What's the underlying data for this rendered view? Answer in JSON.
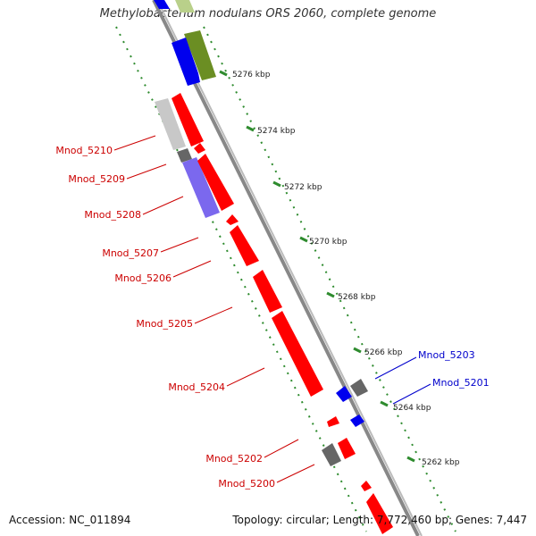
{
  "title": "Methylobacterium nodulans ORS 2060, complete genome",
  "footer": {
    "accession": "Accession: NC_011894",
    "summary": "Topology: circular; Length: 7,772,460 bp; Genes: 7,447"
  },
  "colors": {
    "forward_gene": "#ff0000",
    "reverse_gene": "#0000ee",
    "pseudo_gray": "#808080",
    "olive": "#6b8e23",
    "lavender": "#7b68ee",
    "light_gray": "#c8c8c8",
    "ruler_ticks": "#2e8b2e",
    "backbone": "#888888",
    "label_red": "#cc0000",
    "label_blue": "#0000cc"
  },
  "ruler": {
    "unit": "kbp",
    "ticks": [
      {
        "label": "5276 kbp"
      },
      {
        "label": "5274 kbp"
      },
      {
        "label": "5272 kbp"
      },
      {
        "label": "5270 kbp"
      },
      {
        "label": "5268 kbp"
      },
      {
        "label": "5266 kbp"
      },
      {
        "label": "5264 kbp"
      },
      {
        "label": "5262 kbp"
      }
    ]
  },
  "gene_labels": [
    {
      "text": "Mnod_5210",
      "color": "red"
    },
    {
      "text": "Mnod_5209",
      "color": "red"
    },
    {
      "text": "Mnod_5208",
      "color": "red"
    },
    {
      "text": "Mnod_5207",
      "color": "red"
    },
    {
      "text": "Mnod_5206",
      "color": "red"
    },
    {
      "text": "Mnod_5205",
      "color": "red"
    },
    {
      "text": "Mnod_5204",
      "color": "red"
    },
    {
      "text": "Mnod_5202",
      "color": "red"
    },
    {
      "text": "Mnod_5200",
      "color": "red"
    },
    {
      "text": "Mnod_5203",
      "color": "blue"
    },
    {
      "text": "Mnod_5201",
      "color": "blue"
    }
  ]
}
